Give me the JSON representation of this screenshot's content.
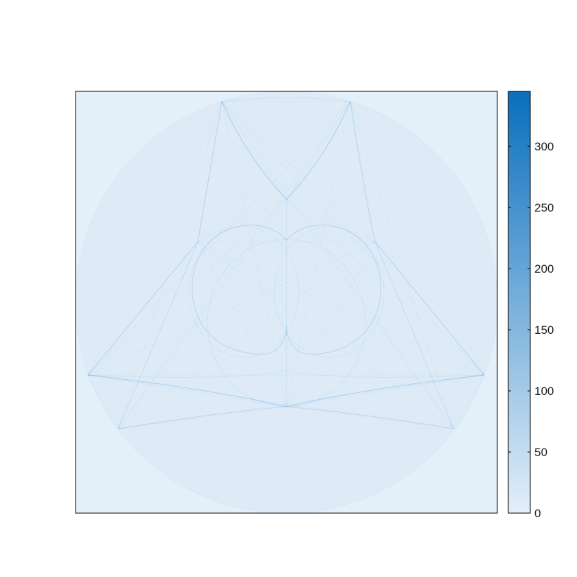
{
  "chart_data": {
    "type": "heatmap",
    "title": "",
    "xlabel": "",
    "ylabel": "",
    "x_ticks_shown": false,
    "y_ticks_shown": false,
    "grid": false,
    "legend": "none",
    "colorbar": {
      "placement": "right",
      "range": [
        0,
        345
      ],
      "ticks": [
        0,
        50,
        100,
        150,
        200,
        250,
        300
      ],
      "tick_labels": [
        "0",
        "50",
        "100",
        "150",
        "200",
        "250",
        "300"
      ],
      "color_low": "#e3eff9",
      "color_high": "#0a6fbd"
    },
    "colors": {
      "background": "#e3eff9",
      "disk": "#deebf7",
      "pattern_line": "#3d8fd1"
    }
  }
}
